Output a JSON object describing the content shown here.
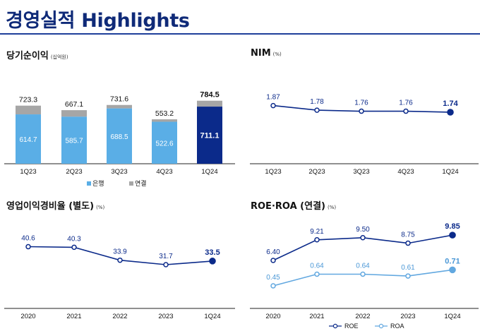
{
  "page": {
    "title": "경영실적 Highlights"
  },
  "colors": {
    "navy": "#0b2a8a",
    "bank_bar": "#5aaee6",
    "group_bar": "#a6a6a6",
    "light_blue": "#62a8e0",
    "axis": "#222222"
  },
  "chart_data": [
    {
      "id": "net-income",
      "type": "bar",
      "title": "당기순이익",
      "unit": "(십억원)",
      "categories": [
        "1Q23",
        "2Q23",
        "3Q23",
        "4Q23",
        "1Q24"
      ],
      "series": [
        {
          "name": "은행",
          "values": [
            614.7,
            585.7,
            688.5,
            522.6,
            711.1
          ]
        },
        {
          "name": "연결",
          "values": [
            723.3,
            667.1,
            731.6,
            553.2,
            784.5
          ]
        }
      ],
      "value_labels": {
        "bank": [
          "614.7",
          "585.7",
          "688.5",
          "522.6",
          "711.1"
        ],
        "total": [
          "723.3",
          "667.1",
          "731.6",
          "553.2",
          "784.5"
        ]
      },
      "legend": {
        "position": "bottom",
        "items": [
          "은행",
          "연결"
        ]
      },
      "ylim": [
        0,
        800
      ],
      "highlight_last": true
    },
    {
      "id": "nim",
      "type": "line",
      "title": "NIM",
      "unit": "(%)",
      "categories": [
        "1Q23",
        "2Q23",
        "3Q23",
        "4Q23",
        "1Q24"
      ],
      "series": [
        {
          "values": [
            1.87,
            1.78,
            1.76,
            1.76,
            1.74
          ]
        }
      ],
      "value_labels": [
        "1.87",
        "1.78",
        "1.76",
        "1.76",
        "1.74"
      ],
      "ylim": [
        1.4,
        2.0
      ],
      "highlight_last": true
    },
    {
      "id": "cost-income",
      "type": "line",
      "title": "영업이익경비율 (별도)",
      "unit": "(%)",
      "categories": [
        "2020",
        "2021",
        "2022",
        "2023",
        "1Q24"
      ],
      "series": [
        {
          "values": [
            40.6,
            40.3,
            33.9,
            31.7,
            33.5
          ]
        }
      ],
      "value_labels": [
        "40.6",
        "40.3",
        "33.9",
        "31.7",
        "33.5"
      ],
      "ylim": [
        20,
        45
      ],
      "highlight_last": true
    },
    {
      "id": "roe-roa",
      "type": "line",
      "title": "ROE·ROA (연결)",
      "unit": "(%)",
      "categories": [
        "2020",
        "2021",
        "2022",
        "2023",
        "1Q24"
      ],
      "series": [
        {
          "name": "ROE",
          "values": [
            6.4,
            9.21,
            9.5,
            8.75,
            9.85
          ]
        },
        {
          "name": "ROA",
          "values": [
            0.45,
            0.64,
            0.64,
            0.61,
            0.71
          ]
        }
      ],
      "value_labels": {
        "roe": [
          "6.40",
          "9.21",
          "9.50",
          "8.75",
          "9.85"
        ],
        "roa": [
          "0.45",
          "0.64",
          "0.64",
          "0.61",
          "0.71"
        ]
      },
      "legend": {
        "position": "bottom",
        "items": [
          "ROE",
          "ROA"
        ]
      },
      "highlight_last": true
    }
  ]
}
